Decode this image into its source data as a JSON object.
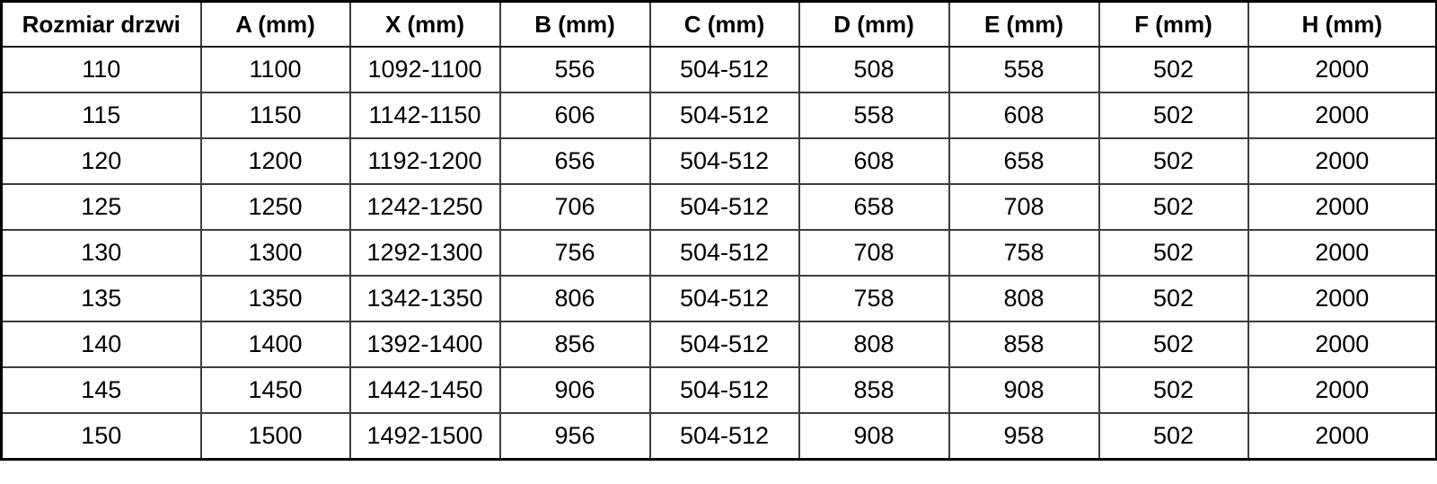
{
  "table": {
    "columns": [
      "Rozmiar drzwi",
      "A (mm)",
      "X (mm)",
      "B (mm)",
      "C (mm)",
      "D (mm)",
      "E (mm)",
      "F (mm)",
      "H (mm)"
    ],
    "rows": [
      [
        "110",
        "1100",
        "1092-1100",
        "556",
        "504-512",
        "508",
        "558",
        "502",
        "2000"
      ],
      [
        "115",
        "1150",
        "1142-1150",
        "606",
        "504-512",
        "558",
        "608",
        "502",
        "2000"
      ],
      [
        "120",
        "1200",
        "1192-1200",
        "656",
        "504-512",
        "608",
        "658",
        "502",
        "2000"
      ],
      [
        "125",
        "1250",
        "1242-1250",
        "706",
        "504-512",
        "658",
        "708",
        "502",
        "2000"
      ],
      [
        "130",
        "1300",
        "1292-1300",
        "756",
        "504-512",
        "708",
        "758",
        "502",
        "2000"
      ],
      [
        "135",
        "1350",
        "1342-1350",
        "806",
        "504-512",
        "758",
        "808",
        "502",
        "2000"
      ],
      [
        "140",
        "1400",
        "1392-1400",
        "856",
        "504-512",
        "808",
        "858",
        "502",
        "2000"
      ],
      [
        "145",
        "1450",
        "1442-1450",
        "906",
        "504-512",
        "858",
        "908",
        "502",
        "2000"
      ],
      [
        "150",
        "1500",
        "1492-1500",
        "956",
        "504-512",
        "908",
        "958",
        "502",
        "2000"
      ]
    ],
    "colors": {
      "grid_border": "#3d3d3d",
      "outer_frame": "#000000",
      "text": "#000000",
      "background": "#ffffff"
    }
  }
}
